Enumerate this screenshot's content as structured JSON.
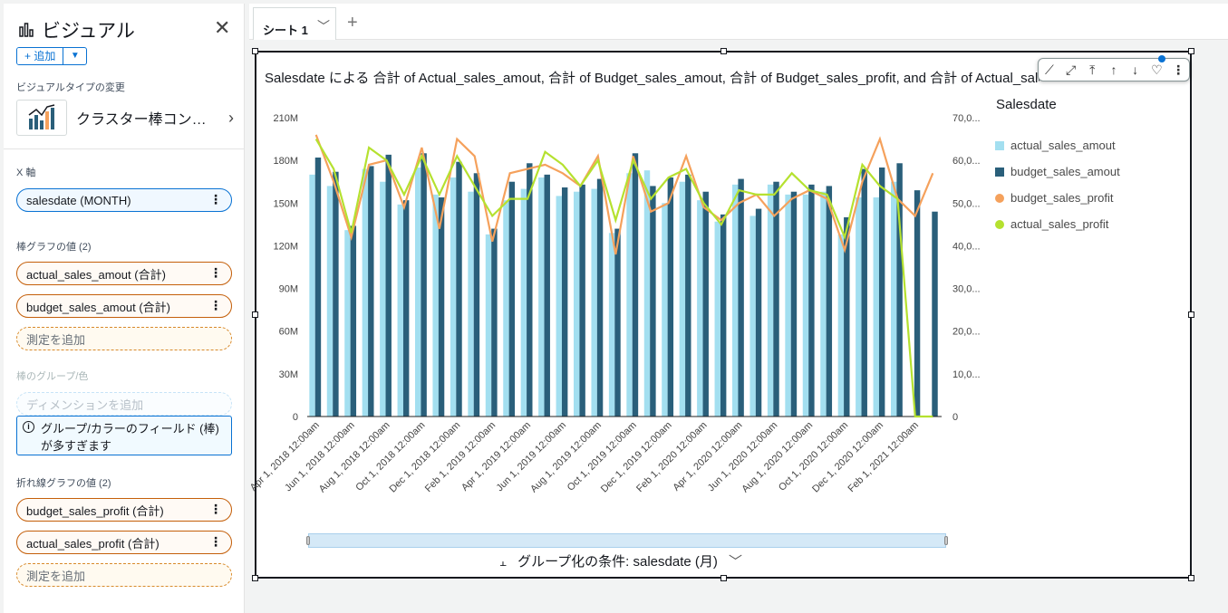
{
  "left_panel": {
    "title": "ビジュアル",
    "add_label": "+ 追加",
    "visual_type_label": "ビジュアルタイプの変更",
    "visual_type_name": "クラスター棒コン…",
    "x_axis_label": "X 軸",
    "x_axis_field": "salesdate (MONTH)",
    "bar_values_label": "棒グラフの値 (2)",
    "bar_fields": [
      "actual_sales_amout (合計)",
      "budget_sales_amout (合計)"
    ],
    "add_measure": "測定を追加",
    "bar_group_label": "棒のグループ/色",
    "add_dimension": "ディメンションを追加",
    "warning_text": "グループ/カラーのフィールド (棒) が多すぎます",
    "line_values_label": "折れ線グラフの値 (2)",
    "line_fields": [
      "budget_sales_profit (合計)",
      "actual_sales_profit (合計)"
    ]
  },
  "topbar": {
    "tab_label": "シート 1"
  },
  "chart_card": {
    "title": "Salesdate による 合計 of Actual_sales_amout, 合計 of Budget_sales_amout, 合計 of Budget_sales_profit, and 合計 of Actual_sales_profit",
    "legend_title": "Salesdate",
    "group_by": "グループ化の条件: salesdate (月)"
  },
  "chart_data": {
    "type": "bar",
    "title": "Salesdate による 合計 of Actual_sales_amout, 合計 of Budget_sales_amout, 合計 of Budget_sales_profit, and 合計 of Actual_sales_profit",
    "xlabel": "",
    "ylabel": "",
    "ylim": [
      0,
      210000000
    ],
    "y2lim": [
      0,
      70000
    ],
    "y_ticks": [
      "0",
      "30M",
      "60M",
      "90M",
      "120M",
      "150M",
      "180M",
      "210M"
    ],
    "y2_ticks": [
      "0",
      "10,0...",
      "20,0...",
      "30,0...",
      "40,0...",
      "50,0...",
      "60,0...",
      "70,0..."
    ],
    "x_tick_labels": [
      "Apr 1, 2018 12:00am",
      "Jun 1, 2018 12:00am",
      "Aug 1, 2018 12:00am",
      "Oct 1, 2018 12:00am",
      "Dec 1, 2018 12:00am",
      "Feb 1, 2019 12:00am",
      "Apr 1, 2019 12:00am",
      "Jun 1, 2019 12:00am",
      "Aug 1, 2019 12:00am",
      "Oct 1, 2019 12:00am",
      "Dec 1, 2019 12:00am",
      "Feb 1, 2020 12:00am",
      "Apr 1, 2020 12:00am",
      "Jun 1, 2020 12:00am",
      "Aug 1, 2020 12:00am",
      "Oct 1, 2020 12:00am",
      "Dec 1, 2020 12:00am",
      "Feb 1, 2021 12:00am"
    ],
    "months": [
      "2018-04",
      "2018-05",
      "2018-06",
      "2018-07",
      "2018-08",
      "2018-09",
      "2018-10",
      "2018-11",
      "2018-12",
      "2019-01",
      "2019-02",
      "2019-03",
      "2019-04",
      "2019-05",
      "2019-06",
      "2019-07",
      "2019-08",
      "2019-09",
      "2019-10",
      "2019-11",
      "2019-12",
      "2020-01",
      "2020-02",
      "2020-03",
      "2020-04",
      "2020-05",
      "2020-06",
      "2020-07",
      "2020-08",
      "2020-09",
      "2020-10",
      "2020-11",
      "2020-12",
      "2021-01",
      "2021-02",
      "2021-03"
    ],
    "series": [
      {
        "name": "actual_sales_amout",
        "color": "#a3dff0",
        "axis": "left",
        "kind": "bar",
        "values": [
          170000000,
          162000000,
          131000000,
          174000000,
          165000000,
          149000000,
          175000000,
          156000000,
          168000000,
          158000000,
          128000000,
          152000000,
          160000000,
          168000000,
          155000000,
          158000000,
          160000000,
          129000000,
          171000000,
          173000000,
          150000000,
          165000000,
          152000000,
          137000000,
          163000000,
          141000000,
          163000000,
          156000000,
          156000000,
          158000000,
          128000000,
          154000000,
          154000000,
          165000000,
          0,
          0
        ]
      },
      {
        "name": "budget_sales_amout",
        "color": "#2a5f7a",
        "axis": "left",
        "kind": "bar",
        "values": [
          182000000,
          172000000,
          134000000,
          176000000,
          184000000,
          152000000,
          185000000,
          154000000,
          179000000,
          171000000,
          132000000,
          165000000,
          178000000,
          170000000,
          161000000,
          163000000,
          167000000,
          132000000,
          185000000,
          162000000,
          168000000,
          170000000,
          158000000,
          142000000,
          167000000,
          146000000,
          165000000,
          158000000,
          163000000,
          162000000,
          140000000,
          174000000,
          175000000,
          178000000,
          159000000,
          144000000
        ]
      },
      {
        "name": "budget_sales_profit",
        "color": "#f5a15c",
        "axis": "right",
        "kind": "line",
        "values": [
          66000,
          55000,
          42000,
          59000,
          60000,
          49000,
          63000,
          44000,
          65000,
          61000,
          41000,
          57000,
          58000,
          59000,
          57000,
          54000,
          61000,
          38000,
          61000,
          48000,
          50000,
          61000,
          49000,
          46000,
          50000,
          52000,
          47000,
          51000,
          53000,
          51000,
          39000,
          55000,
          65000,
          51000,
          47000,
          57000
        ]
      },
      {
        "name": "actual_sales_profit",
        "color": "#b5e12f",
        "axis": "right",
        "kind": "line",
        "values": [
          65000,
          58000,
          43000,
          63000,
          60000,
          52000,
          61000,
          52000,
          61000,
          54000,
          47000,
          51000,
          51000,
          62000,
          59000,
          54000,
          60000,
          46000,
          60000,
          51000,
          56000,
          58000,
          50000,
          45000,
          53000,
          52000,
          52000,
          57000,
          53000,
          52000,
          42000,
          59000,
          54000,
          51000,
          0,
          0
        ]
      }
    ],
    "legend_position": "right",
    "grid": false
  }
}
